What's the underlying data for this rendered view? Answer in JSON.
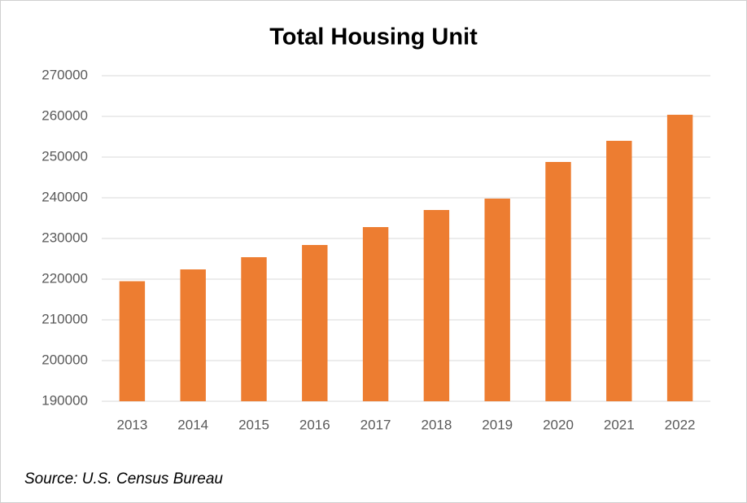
{
  "chart_data": {
    "type": "bar",
    "title": "Total Housing Unit",
    "categories": [
      "2013",
      "2014",
      "2015",
      "2016",
      "2017",
      "2018",
      "2019",
      "2020",
      "2021",
      "2022"
    ],
    "values": [
      219500,
      222400,
      225400,
      228400,
      232800,
      237000,
      239800,
      248800,
      254000,
      260400
    ],
    "color": "#ed7d31",
    "ylim": [
      190000,
      270000
    ],
    "yticks": [
      190000,
      200000,
      210000,
      220000,
      230000,
      240000,
      250000,
      260000,
      270000
    ],
    "grid": true,
    "source": "Source: U.S. Census Bureau"
  }
}
